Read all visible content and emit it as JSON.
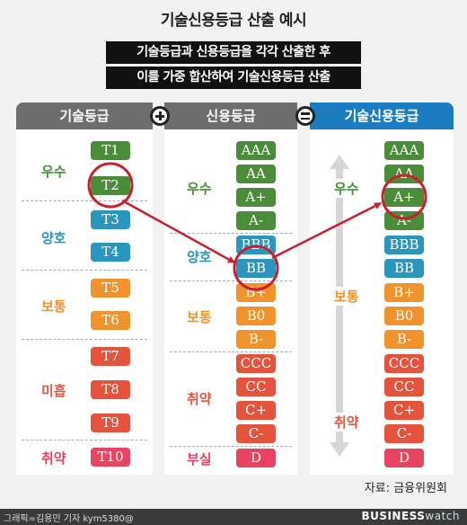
{
  "title": "기술신용등급 산출 예시",
  "subtitle": [
    "기술등급과 신용등급을 각각 산출한 후",
    "이를 가중 합산하여 기술신용등급 산출"
  ],
  "columns": {
    "tech": "기술등급",
    "credit": "신용등급",
    "combined": "기술신용등급"
  },
  "operators": {
    "plus": "plus-sign",
    "equals": "equals-sign"
  },
  "tech_grades": {
    "groups": [
      {
        "label": "우수",
        "color": "#4a8c3a",
        "grades": [
          "T1",
          "T2"
        ]
      },
      {
        "label": "양호",
        "color": "#2a95bd",
        "grades": [
          "T3",
          "T4"
        ]
      },
      {
        "label": "보통",
        "color": "#f0932c",
        "grades": [
          "T5",
          "T6"
        ]
      },
      {
        "label": "미흡",
        "color": "#e6533c",
        "grades": [
          "T7",
          "T8",
          "T9"
        ]
      },
      {
        "label": "취약",
        "color": "#e84360",
        "grades": [
          "T10"
        ]
      }
    ],
    "highlighted": "T2"
  },
  "credit_grades": {
    "groups": [
      {
        "label": "우수",
        "color": "#4a8c3a",
        "grades": [
          "AAA",
          "AA",
          "A+",
          "A-"
        ]
      },
      {
        "label": "양호",
        "color": "#2a95bd",
        "grades": [
          "BBB",
          "BB"
        ]
      },
      {
        "label": "보통",
        "color": "#f0932c",
        "grades": [
          "B+",
          "B0",
          "B-"
        ]
      },
      {
        "label": "취약",
        "color": "#e6533c",
        "grades": [
          "CCC",
          "CC",
          "C+",
          "C-"
        ]
      },
      {
        "label": "부실",
        "color": "#e84360",
        "grades": [
          "D"
        ]
      }
    ],
    "highlighted": "BB"
  },
  "combined_grades": {
    "grades": [
      {
        "g": "AAA",
        "color": "#4a8c3a"
      },
      {
        "g": "AA",
        "color": "#4a8c3a"
      },
      {
        "g": "A+",
        "color": "#4a8c3a"
      },
      {
        "g": "A-",
        "color": "#4a8c3a"
      },
      {
        "g": "BBB",
        "color": "#2a95bd"
      },
      {
        "g": "BB",
        "color": "#2a95bd"
      },
      {
        "g": "B+",
        "color": "#f0932c"
      },
      {
        "g": "B0",
        "color": "#f0932c"
      },
      {
        "g": "B-",
        "color": "#f0932c"
      },
      {
        "g": "CCC",
        "color": "#e6533c"
      },
      {
        "g": "CC",
        "color": "#e6533c"
      },
      {
        "g": "C+",
        "color": "#e6533c"
      },
      {
        "g": "C-",
        "color": "#e6533c"
      },
      {
        "g": "D",
        "color": "#e84360"
      }
    ],
    "scale_labels": [
      "우수",
      "보통",
      "취약"
    ],
    "highlighted": "A+"
  },
  "source": "자료: 금융위원회",
  "footer": {
    "credit": "그래픽=김용민 기자 kym5380@",
    "brand_main": "BUSINESS",
    "brand_accent": "watch"
  }
}
